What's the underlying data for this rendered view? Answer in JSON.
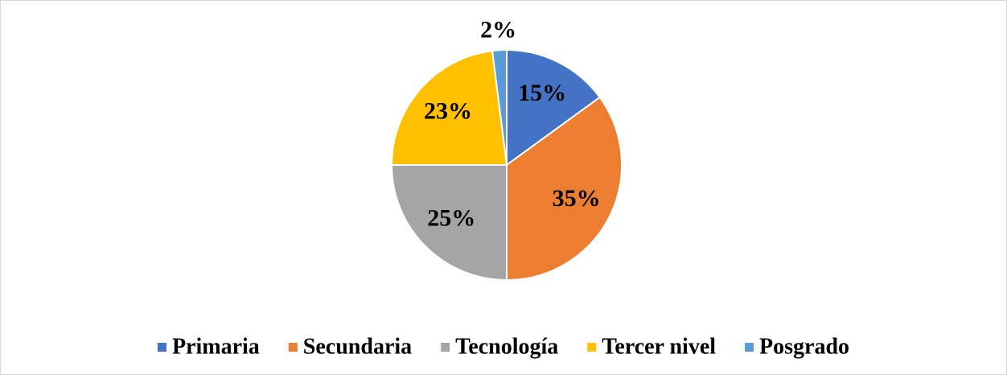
{
  "chart_data": {
    "type": "pie",
    "categories": [
      "Primaria",
      "Secundaria",
      "Tecnología",
      "Tercer nivel",
      "Posgrado"
    ],
    "values": [
      15,
      35,
      25,
      23,
      2
    ],
    "value_labels": [
      "15%",
      "35%",
      "25%",
      "23%",
      "2%"
    ],
    "colors": [
      "#4472c4",
      "#ed7d31",
      "#a5a5a5",
      "#ffc000",
      "#5b9bd5"
    ],
    "legend": "bottom"
  }
}
